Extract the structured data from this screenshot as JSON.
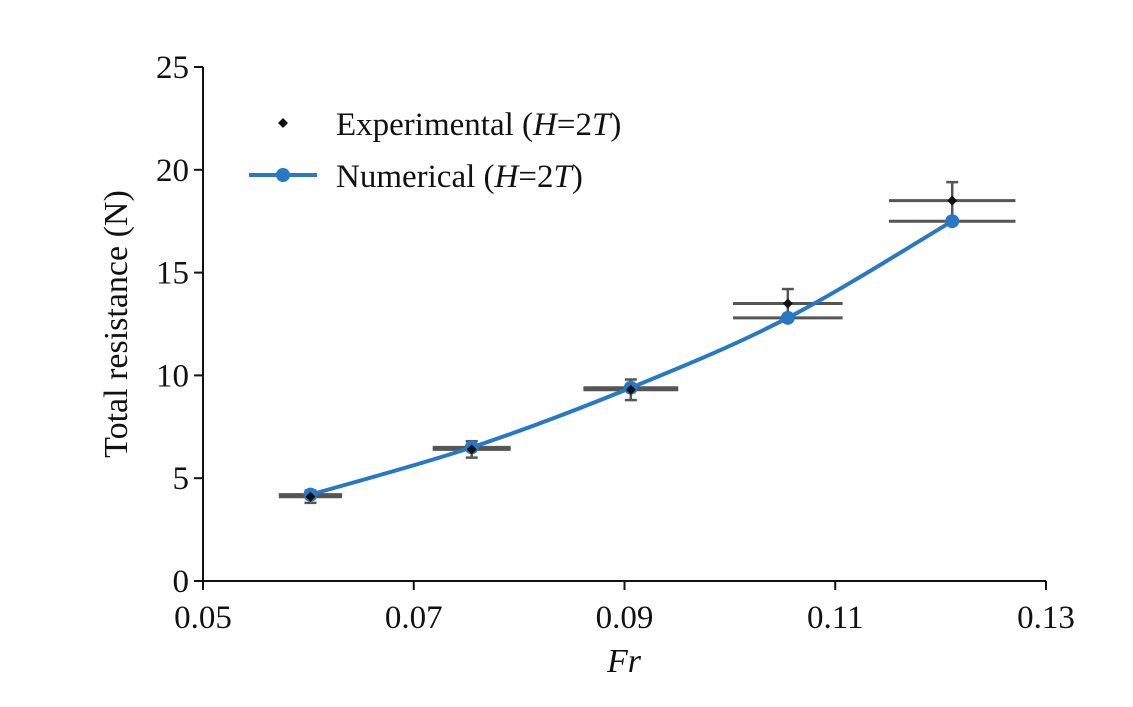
{
  "chart_data": {
    "type": "line",
    "xlabel": "Fr",
    "ylabel": "Total resistance (N)",
    "xlim": [
      0.05,
      0.13
    ],
    "ylim": [
      0,
      25
    ],
    "xticks": [
      0.05,
      0.07,
      0.09,
      0.11,
      0.13
    ],
    "xtick_labels": [
      "0.05",
      "0.07",
      "0.09",
      "0.11",
      "0.13"
    ],
    "yticks": [
      0,
      5,
      10,
      15,
      20,
      25
    ],
    "ytick_labels": [
      "0",
      "5",
      "10",
      "15",
      "20",
      "25"
    ],
    "grid": false,
    "legend_position": "top-left",
    "series": [
      {
        "name": "Experimental (H=2T)",
        "name_parts": {
          "prefix": "Experimental (",
          "var1": "H",
          "eq": "=2",
          "var2": "T",
          "suffix": ")"
        },
        "kind": "markers",
        "marker": "diamond",
        "color": "#111111",
        "errorbar_color": "#555555",
        "x": [
          0.0602,
          0.0755,
          0.0906,
          0.1055,
          0.1211
        ],
        "y": [
          4.1,
          6.4,
          9.3,
          13.5,
          18.5
        ],
        "y_err": [
          0.3,
          0.4,
          0.5,
          0.7,
          0.9
        ],
        "x_err": [
          0.003,
          0.0037,
          0.0045,
          0.0052,
          0.006
        ]
      },
      {
        "name": "Numerical (H=2T)",
        "name_parts": {
          "prefix": "Numerical (",
          "var1": "H",
          "eq": "=2",
          "var2": "T",
          "suffix": ")"
        },
        "kind": "line-markers",
        "marker": "circle",
        "color": "#2878c4",
        "errorbar_color": "#555555",
        "x": [
          0.0602,
          0.0755,
          0.0906,
          0.1055,
          0.1211
        ],
        "y": [
          4.2,
          6.5,
          9.4,
          12.8,
          17.5
        ],
        "x_err": [
          0.003,
          0.0037,
          0.0045,
          0.0052,
          0.006
        ]
      }
    ]
  }
}
